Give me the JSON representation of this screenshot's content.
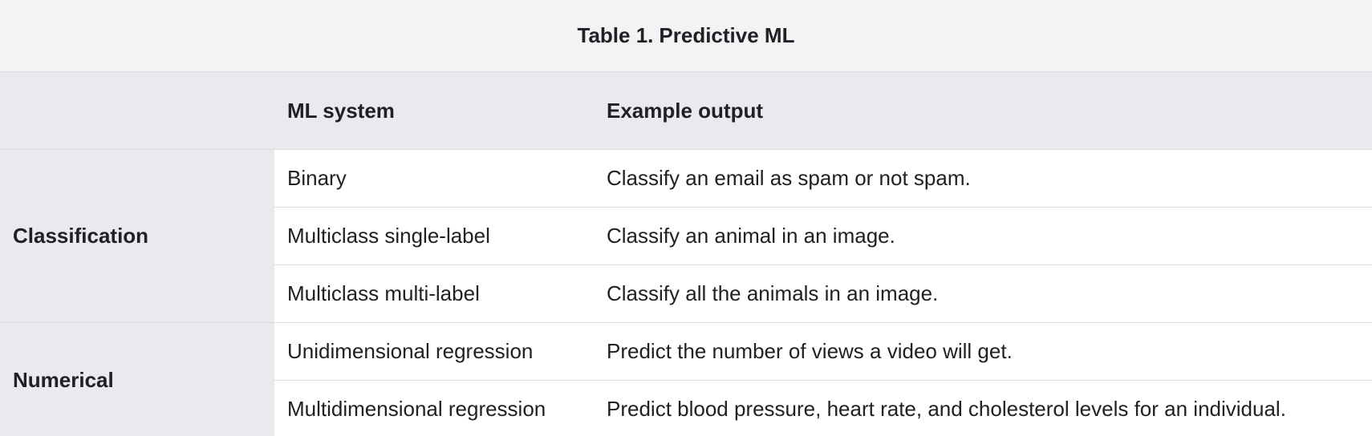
{
  "caption": {
    "label": "Table 1.",
    "title": "Predictive ML"
  },
  "headers": [
    "",
    "ML system",
    "Example output"
  ],
  "groups": [
    {
      "name": "Classification",
      "rows": [
        {
          "system": "Binary",
          "example": "Classify an email as spam or not spam."
        },
        {
          "system": "Multiclass single-label",
          "example": "Classify an animal in an image."
        },
        {
          "system": "Multiclass multi-label",
          "example": "Classify all the animals in an image."
        }
      ]
    },
    {
      "name": "Numerical",
      "rows": [
        {
          "system": "Unidimensional regression",
          "example": "Predict the number of views a video will get."
        },
        {
          "system": "Multidimensional regression",
          "example": "Predict blood pressure, heart rate, and cholesterol levels for an individual."
        }
      ]
    }
  ]
}
